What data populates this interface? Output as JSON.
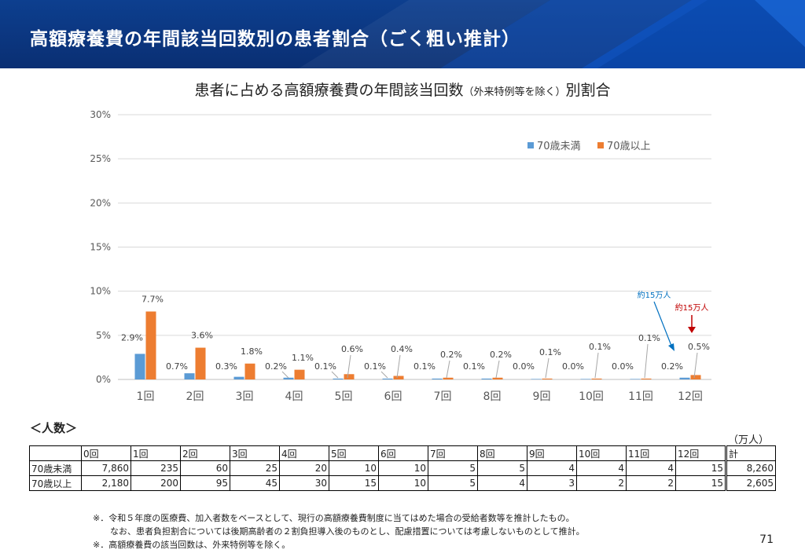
{
  "header": {
    "title": "高額療養費の年間該当回数別の患者割合（ごく粗い推計）",
    "brand_color": "#0d3f8f"
  },
  "chart_title_main_a": "患者に占める高額療養費の年間該当回数",
  "chart_title_small": "（外来特例等を除く）",
  "chart_title_main_b": "別割合",
  "chart_data": {
    "type": "bar",
    "categories": [
      "1回",
      "2回",
      "3回",
      "4回",
      "5回",
      "6回",
      "7回",
      "8回",
      "9回",
      "10回",
      "11回",
      "12回"
    ],
    "series": [
      {
        "name": "70歳未満",
        "color": "#5b9bd5",
        "values": [
          2.9,
          0.7,
          0.3,
          0.2,
          0.1,
          0.1,
          0.1,
          0.1,
          0.0,
          0.0,
          0.0,
          0.2
        ],
        "labels": [
          "2.9%",
          "0.7%",
          "0.3%",
          "0.2%",
          "0.1%",
          "0.1%",
          "0.1%",
          "0.1%",
          "0.0%",
          "0.0%",
          "0.0%",
          "0.2%"
        ]
      },
      {
        "name": "70歳以上",
        "color": "#ed7d31",
        "values": [
          7.7,
          3.6,
          1.8,
          1.1,
          0.6,
          0.4,
          0.2,
          0.2,
          0.1,
          0.1,
          0.1,
          0.5
        ],
        "labels": [
          "7.7%",
          "3.6%",
          "1.8%",
          "1.1%",
          "0.6%",
          "0.4%",
          "0.2%",
          "0.2%",
          "0.1%",
          "0.1%",
          "0.1%",
          "0.5%"
        ]
      }
    ],
    "y_ticks": [
      "0%",
      "5%",
      "10%",
      "15%",
      "20%",
      "25%",
      "30%"
    ],
    "ylim": [
      0,
      30
    ],
    "grid": true,
    "legend": "top-right",
    "annotations": [
      {
        "text": "約15万人",
        "color": "#0070c0",
        "series": "70歳未満",
        "category": "12回"
      },
      {
        "text": "約15万人",
        "color": "#c00000",
        "series": "70歳以上",
        "category": "12回"
      }
    ]
  },
  "table": {
    "section_label": "＜人数＞",
    "unit": "（万人）",
    "headers": [
      "0回",
      "1回",
      "2回",
      "3回",
      "4回",
      "5回",
      "6回",
      "7回",
      "8回",
      "9回",
      "10回",
      "11回",
      "12回",
      "計"
    ],
    "rows": [
      {
        "label": "70歳未満",
        "cells": [
          "7,860",
          "235",
          "60",
          "25",
          "20",
          "10",
          "10",
          "5",
          "5",
          "4",
          "4",
          "4",
          "15",
          "8,260"
        ]
      },
      {
        "label": "70歳以上",
        "cells": [
          "2,180",
          "200",
          "95",
          "45",
          "30",
          "15",
          "10",
          "5",
          "4",
          "3",
          "2",
          "2",
          "15",
          "2,605"
        ]
      }
    ]
  },
  "notes": [
    "※．令和５年度の医療費、加入者数をベースとして、現行の高額療養費制度に当てはめた場合の受給者数等を推計したもの。",
    "なお、患者負担割合については後期高齢者の２割負担導入後のものとし、配慮措置については考慮しないものとして推計。",
    "※．高額療養費の該当回数は、外来特例等を除く。"
  ],
  "page_number": "71"
}
